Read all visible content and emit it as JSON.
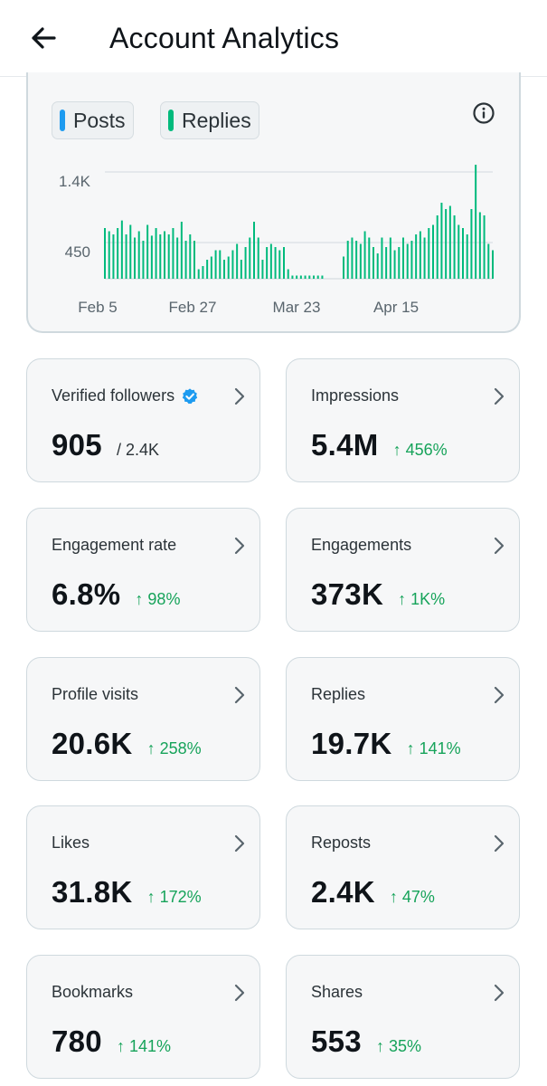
{
  "header": {
    "title": "Account Analytics",
    "back_icon": "arrow-left-icon"
  },
  "chart": {
    "legend": [
      {
        "label": "Posts",
        "color": "#1d9bf0"
      },
      {
        "label": "Replies",
        "color": "#00ba7c"
      }
    ],
    "info_icon": "info-icon"
  },
  "chart_data": {
    "type": "bar",
    "x_tick_labels": [
      "Feb 5",
      "Feb 27",
      "Mar 23",
      "Apr 15"
    ],
    "y_tick_labels": [
      "1.4K",
      "450"
    ],
    "ylim": [
      0,
      2000
    ],
    "grid": true,
    "bar_color": "#00ba7c",
    "series": [
      {
        "values": [
          800,
          750,
          700,
          800,
          920,
          700,
          850,
          650,
          750,
          600,
          850,
          680,
          800,
          700,
          750,
          700,
          800,
          650,
          900,
          600,
          700,
          600,
          150,
          200,
          300,
          350,
          450,
          450,
          300,
          350,
          450,
          550,
          300,
          500,
          650,
          900,
          650,
          300,
          500,
          550,
          500,
          450,
          500,
          150,
          50,
          50,
          50,
          50,
          50,
          50,
          50,
          50,
          0,
          0,
          0,
          0,
          350,
          600,
          650,
          600,
          550,
          750,
          650,
          500,
          400,
          650,
          500,
          650,
          450,
          500,
          650,
          550,
          600,
          700,
          750,
          650,
          800,
          850,
          1000,
          1200,
          1100,
          1150,
          1000,
          850,
          800,
          700,
          1100,
          1800,
          1050,
          1000,
          550,
          450
        ]
      }
    ]
  },
  "metrics": [
    {
      "label": "Verified followers",
      "value": "905",
      "sub": "/ 2.4K",
      "verified": true
    },
    {
      "label": "Impressions",
      "value": "5.4M",
      "change": "↑ 456%"
    },
    {
      "label": "Engagement rate",
      "value": "6.8%",
      "change": "↑ 98%"
    },
    {
      "label": "Engagements",
      "value": "373K",
      "change": "↑ 1K%"
    },
    {
      "label": "Profile visits",
      "value": "20.6K",
      "change": "↑ 258%"
    },
    {
      "label": "Replies",
      "value": "19.7K",
      "change": "↑ 141%"
    },
    {
      "label": "Likes",
      "value": "31.8K",
      "change": "↑ 172%"
    },
    {
      "label": "Reposts",
      "value": "2.4K",
      "change": "↑ 47%"
    },
    {
      "label": "Bookmarks",
      "value": "780",
      "change": "↑ 141%"
    },
    {
      "label": "Shares",
      "value": "553",
      "change": "↑ 35%"
    }
  ],
  "colors": {
    "accent_green": "#16a35a",
    "verified_blue": "#1d9bf0"
  }
}
